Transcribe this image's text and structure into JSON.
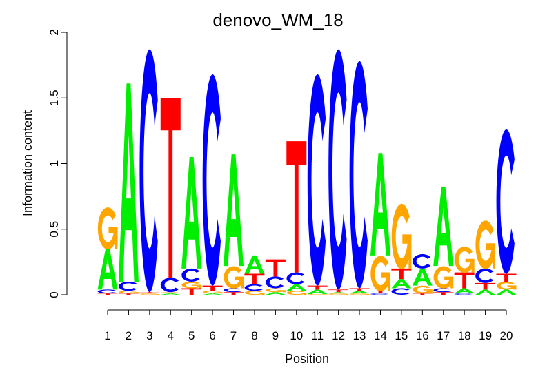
{
  "chart_data": {
    "type": "sequence-logo",
    "title": "denovo_WM_18",
    "xlabel": "Position",
    "ylabel": "Information content",
    "ylim": [
      0,
      2
    ],
    "yticks": [
      "0",
      "0.5",
      "1",
      "1.5",
      "2"
    ],
    "colors": {
      "A": "#00ee00",
      "C": "#0000ff",
      "G": "#ffa500",
      "T": "#ff0000"
    },
    "positions": [
      {
        "label": "1",
        "stack": [
          [
            "T",
            0.01
          ],
          [
            "C",
            0.03
          ],
          [
            "A",
            0.31
          ],
          [
            "G",
            0.32
          ]
        ]
      },
      {
        "label": "2",
        "stack": [
          [
            "T",
            0.01
          ],
          [
            "G",
            0.02
          ],
          [
            "C",
            0.07
          ],
          [
            "A",
            1.51
          ]
        ]
      },
      {
        "label": "3",
        "stack": [
          [
            "G",
            0.01
          ],
          [
            "T",
            0.01
          ],
          [
            "C",
            1.85
          ]
        ]
      },
      {
        "label": "4",
        "stack": [
          [
            "A",
            0.01
          ],
          [
            "G",
            0.01
          ],
          [
            "C",
            0.11
          ],
          [
            "T",
            1.37
          ]
        ]
      },
      {
        "label": "5",
        "stack": [
          [
            "T",
            0.05
          ],
          [
            "G",
            0.05
          ],
          [
            "C",
            0.1
          ],
          [
            "A",
            0.85
          ]
        ]
      },
      {
        "label": "6",
        "stack": [
          [
            "A",
            0.01
          ],
          [
            "G",
            0.02
          ],
          [
            "T",
            0.04
          ],
          [
            "C",
            1.61
          ]
        ]
      },
      {
        "label": "7",
        "stack": [
          [
            "T",
            0.02
          ],
          [
            "C",
            0.03
          ],
          [
            "G",
            0.17
          ],
          [
            "A",
            0.85
          ]
        ]
      },
      {
        "label": "8",
        "stack": [
          [
            "G",
            0.03
          ],
          [
            "C",
            0.05
          ],
          [
            "T",
            0.08
          ],
          [
            "A",
            0.14
          ]
        ]
      },
      {
        "label": "9",
        "stack": [
          [
            "A",
            0.02
          ],
          [
            "G",
            0.03
          ],
          [
            "C",
            0.09
          ],
          [
            "T",
            0.13
          ]
        ]
      },
      {
        "label": "10",
        "stack": [
          [
            "G",
            0.03
          ],
          [
            "A",
            0.05
          ],
          [
            "C",
            0.09
          ],
          [
            "T",
            1.0
          ]
        ]
      },
      {
        "label": "11",
        "stack": [
          [
            "G",
            0.005
          ],
          [
            "A",
            0.035
          ],
          [
            "T",
            0.03
          ],
          [
            "C",
            1.61
          ]
        ]
      },
      {
        "label": "12",
        "stack": [
          [
            "G",
            0.01
          ],
          [
            "A",
            0.01
          ],
          [
            "T",
            0.02
          ],
          [
            "C",
            1.83
          ]
        ]
      },
      {
        "label": "13",
        "stack": [
          [
            "G",
            0.01
          ],
          [
            "A",
            0.02
          ],
          [
            "T",
            0.02
          ],
          [
            "C",
            1.73
          ]
        ]
      },
      {
        "label": "14",
        "stack": [
          [
            "C",
            0.01
          ],
          [
            "T",
            0.02
          ],
          [
            "G",
            0.27
          ],
          [
            "A",
            0.78
          ]
        ]
      },
      {
        "label": "15",
        "stack": [
          [
            "C",
            0.05
          ],
          [
            "A",
            0.07
          ],
          [
            "T",
            0.08
          ],
          [
            "G",
            0.5
          ]
        ]
      },
      {
        "label": "16",
        "stack": [
          [
            "T",
            0.01
          ],
          [
            "G",
            0.06
          ],
          [
            "A",
            0.13
          ],
          [
            "C",
            0.11
          ]
        ]
      },
      {
        "label": "17",
        "stack": [
          [
            "T",
            0.02
          ],
          [
            "C",
            0.03
          ],
          [
            "G",
            0.17
          ],
          [
            "A",
            0.6
          ]
        ]
      },
      {
        "label": "18",
        "stack": [
          [
            "C",
            0.01
          ],
          [
            "A",
            0.04
          ],
          [
            "T",
            0.12
          ],
          [
            "G",
            0.2
          ]
        ]
      },
      {
        "label": "19",
        "stack": [
          [
            "A",
            0.04
          ],
          [
            "T",
            0.05
          ],
          [
            "C",
            0.11
          ],
          [
            "G",
            0.37
          ]
        ]
      },
      {
        "label": "20",
        "stack": [
          [
            "A",
            0.04
          ],
          [
            "G",
            0.06
          ],
          [
            "T",
            0.06
          ],
          [
            "C",
            1.1
          ]
        ]
      }
    ]
  }
}
